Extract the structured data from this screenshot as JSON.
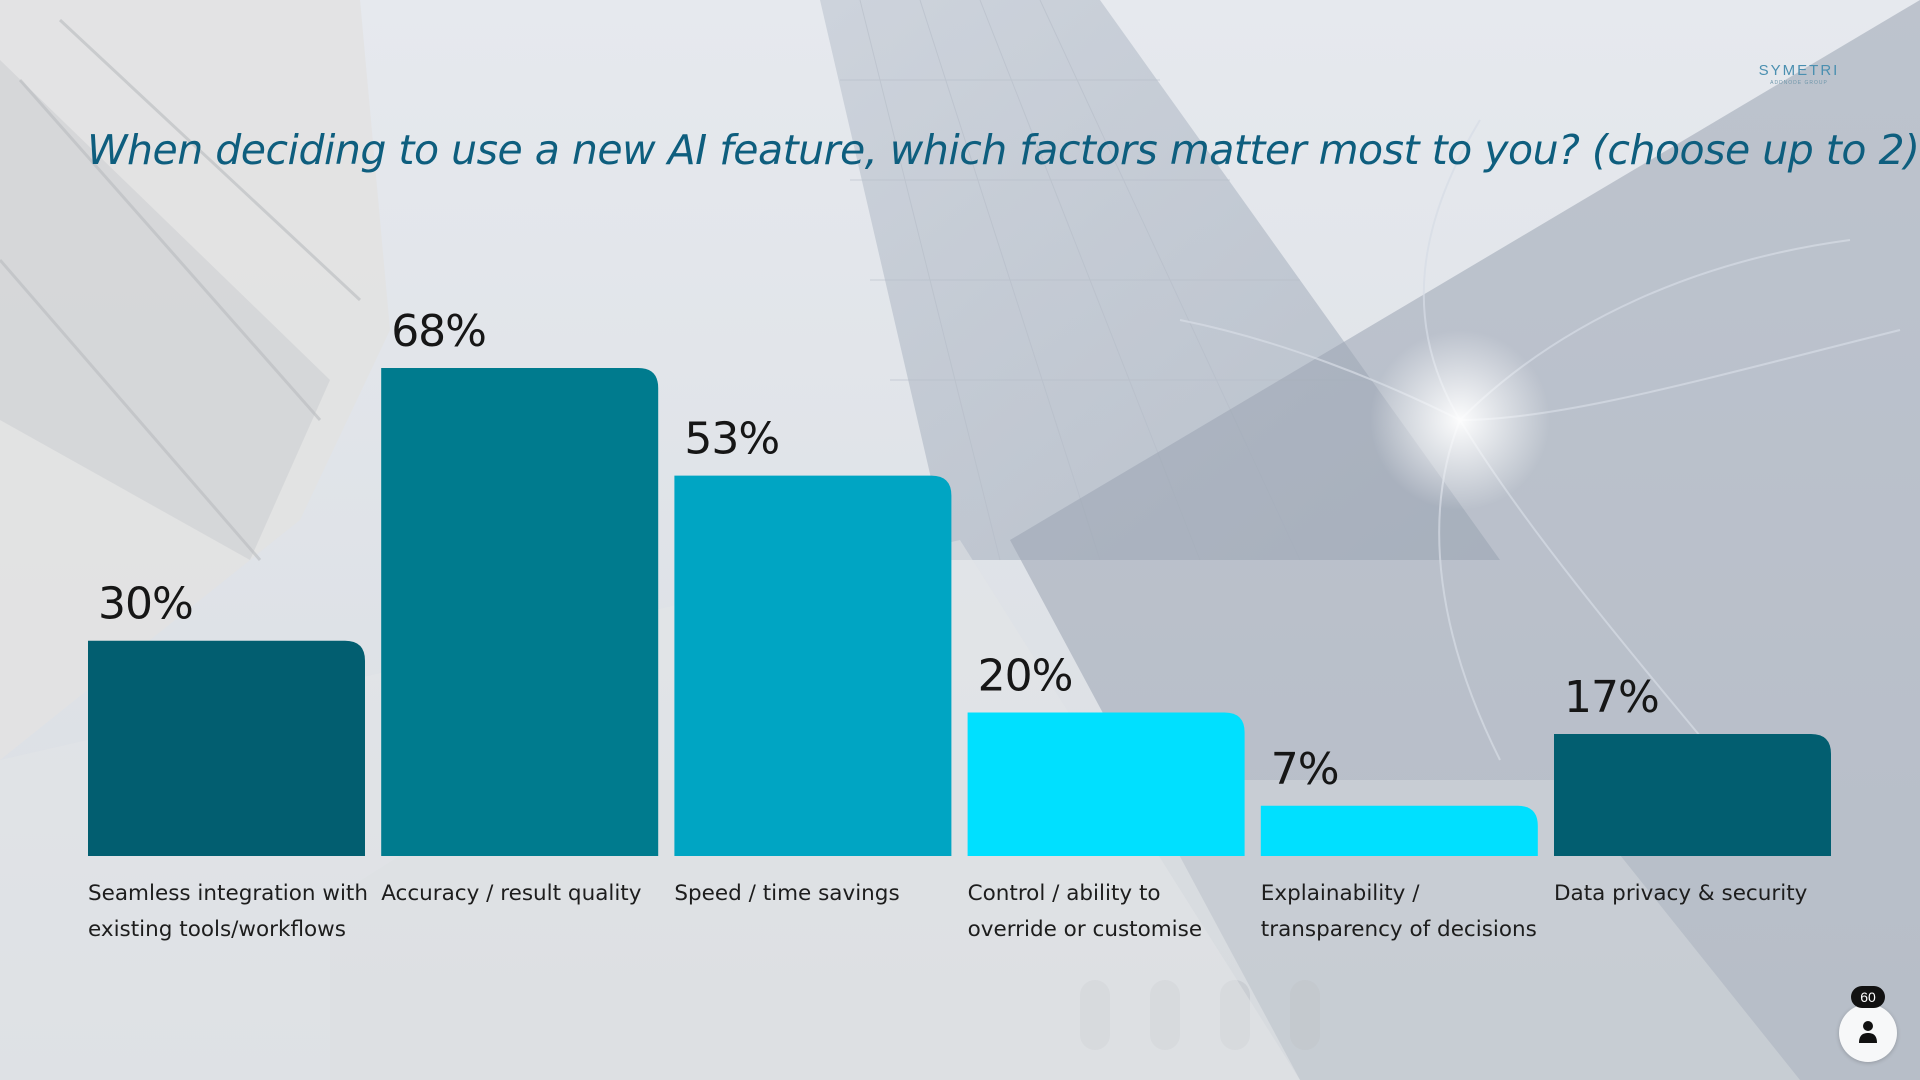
{
  "slide": {
    "title": "When deciding to use a new AI feature, which factors matter most to you? (choose up to 2)"
  },
  "logo": {
    "name": "SYMETRI",
    "tagline": "ADDNODE GROUP"
  },
  "participants": {
    "count": "60",
    "icon": "person-icon"
  },
  "chart_data": {
    "type": "bar",
    "categories": [
      [
        "Seamless integration with",
        "existing tools/workflows"
      ],
      [
        "Accuracy / result quality"
      ],
      [
        "Speed / time savings"
      ],
      [
        "Control / ability to",
        "override or customise"
      ],
      [
        "Explainability /",
        "transparency of decisions"
      ],
      [
        "Data privacy & security"
      ]
    ],
    "values": [
      30,
      68,
      53,
      20,
      7,
      17
    ],
    "value_labels": [
      "30%",
      "68%",
      "53%",
      "20%",
      "7%",
      "17%"
    ],
    "unit": "%",
    "ylim": [
      0,
      100
    ],
    "grid": false,
    "colors": [
      "#025e70",
      "#007b8e",
      "#00a5c3",
      "#00e0ff",
      "#00e0ff",
      "#025e70"
    ]
  }
}
